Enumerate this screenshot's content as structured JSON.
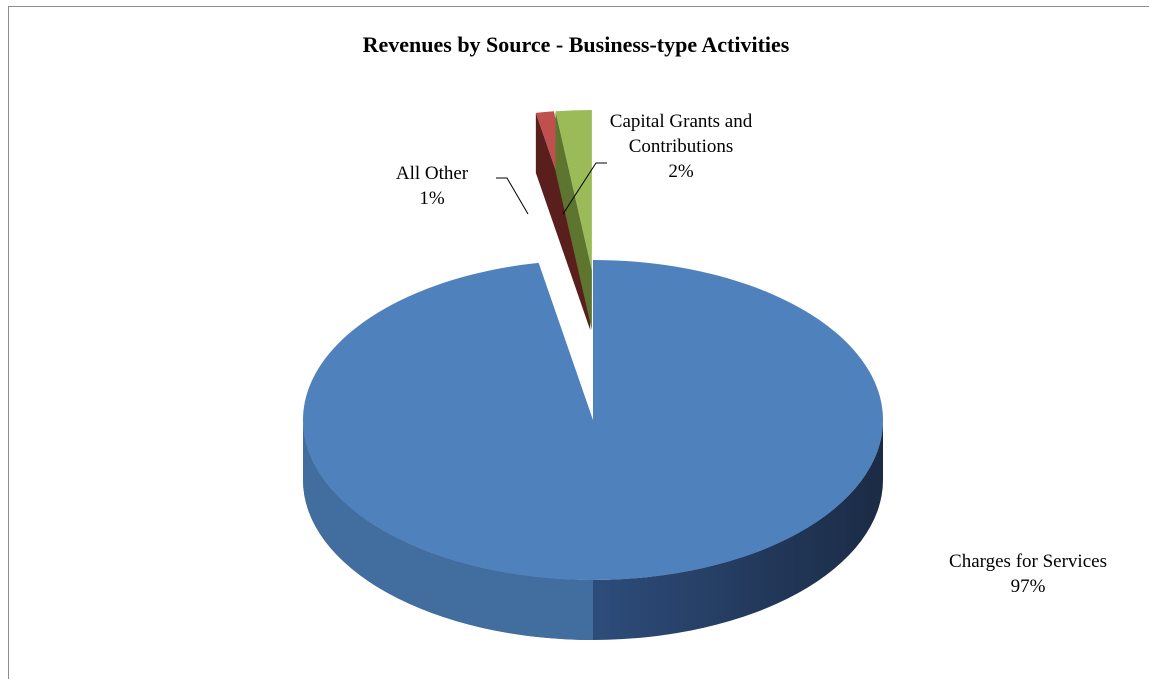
{
  "chart_data": {
    "type": "pie",
    "title": "Revenues by Source - Business-type Activities",
    "three_d": true,
    "exploded_slices": [
      "All Other",
      "Capital Grants and Contributions"
    ],
    "labels_show_percent": true,
    "slices": [
      {
        "name": "Charges for Services",
        "label_lines": [
          "Charges for Services"
        ],
        "value": 97,
        "percent_label": "97%",
        "color": "#4f81bd",
        "side_color": "#2f4d75"
      },
      {
        "name": "All Other",
        "label_lines": [
          "All Other"
        ],
        "value": 1,
        "percent_label": "1%",
        "color": "#c0504d",
        "side_color": "#5a1f1d"
      },
      {
        "name": "Capital Grants and Contributions",
        "label_lines": [
          "Capital Grants and",
          "Contributions"
        ],
        "value": 2,
        "percent_label": "2%",
        "color": "#9bbb59",
        "side_color": "#5e7530"
      }
    ]
  }
}
